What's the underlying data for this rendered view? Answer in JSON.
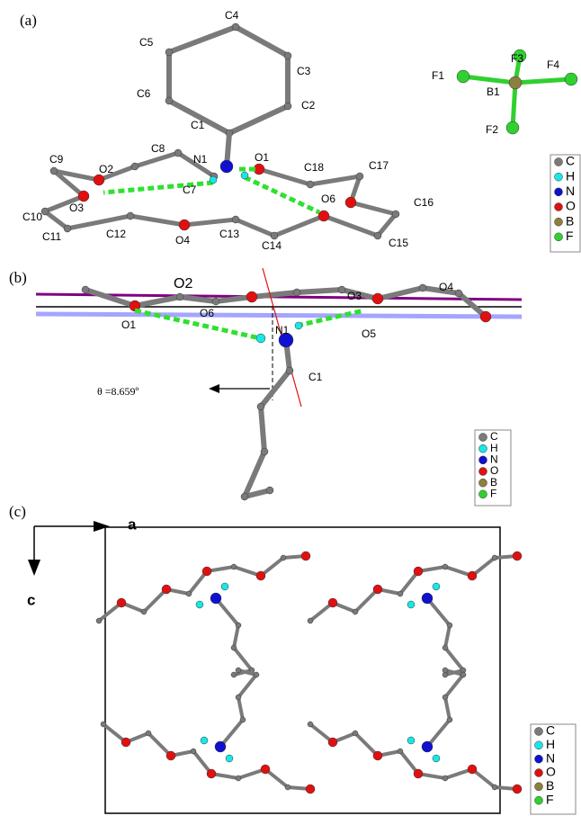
{
  "panels": [
    {
      "label": "(a)",
      "atom_labels": [
        "C4",
        "C5",
        "C3",
        "C6",
        "C2",
        "C1",
        "N1",
        "O1",
        "C8",
        "C9",
        "O2",
        "C18",
        "C17",
        "C7",
        "O3",
        "O6",
        "C16",
        "C10",
        "C11",
        "C12",
        "O4",
        "C13",
        "C14",
        "C15",
        "F3",
        "F1",
        "F4",
        "B1",
        "F2"
      ],
      "legend": [
        "C",
        "H",
        "N",
        "O",
        "B",
        "F"
      ]
    },
    {
      "label": "(b)",
      "atom_labels": [
        "O2",
        "O3",
        "O4",
        "O6",
        "O1",
        "N1",
        "O5",
        "C1"
      ],
      "angle_label": "θ =8.659º",
      "legend": [
        "C",
        "H",
        "N",
        "O",
        "B",
        "F"
      ]
    },
    {
      "label": "(c)",
      "axes": [
        "a",
        "c"
      ],
      "legend": [
        "C",
        "H",
        "N",
        "O",
        "B",
        "F"
      ]
    }
  ]
}
